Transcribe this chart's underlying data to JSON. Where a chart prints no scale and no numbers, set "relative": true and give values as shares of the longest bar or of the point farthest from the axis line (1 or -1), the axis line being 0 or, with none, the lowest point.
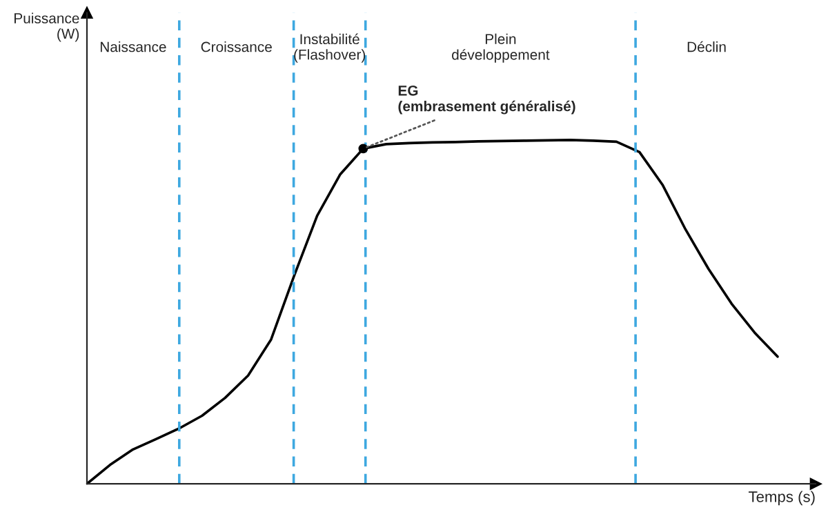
{
  "chart_data": {
    "type": "line",
    "relative": true,
    "xlabel": "Temps (s)",
    "categories": [
      null,
      null,
      null,
      null,
      null,
      null,
      null,
      null,
      null,
      null,
      null,
      null,
      null,
      null,
      null,
      null,
      null,
      null,
      null,
      null,
      null,
      null,
      null,
      null,
      null,
      null,
      null,
      null,
      null,
      null,
      null
    ],
    "grid": "x",
    "legend": false,
    "marker": "none",
    "line_style": "solid",
    "series": [
      {
        "color": "#000000",
        "values": [
          0,
          0.055,
          0.1,
          0.13,
          0.161,
          0.198,
          0.25,
          0.315,
          0.42,
          0.605,
          0.78,
          0.9,
          0.975,
          0.988,
          0.991,
          0.993,
          0.994,
          0.996,
          0.997,
          0.998,
          0.999,
          1.0,
          0.998,
          0.995,
          0.965,
          0.87,
          0.74,
          0.625,
          0.524,
          0.44,
          0.37
        ]
      }
    ],
    "annotations": [
      "Naissance",
      "Croissance",
      "Instabilité\n(Flashover)",
      "Plein\ndéveloppement",
      "Déclin",
      "EG\n(embrasement généralisé)",
      "Puissance\n(W)"
    ]
  }
}
